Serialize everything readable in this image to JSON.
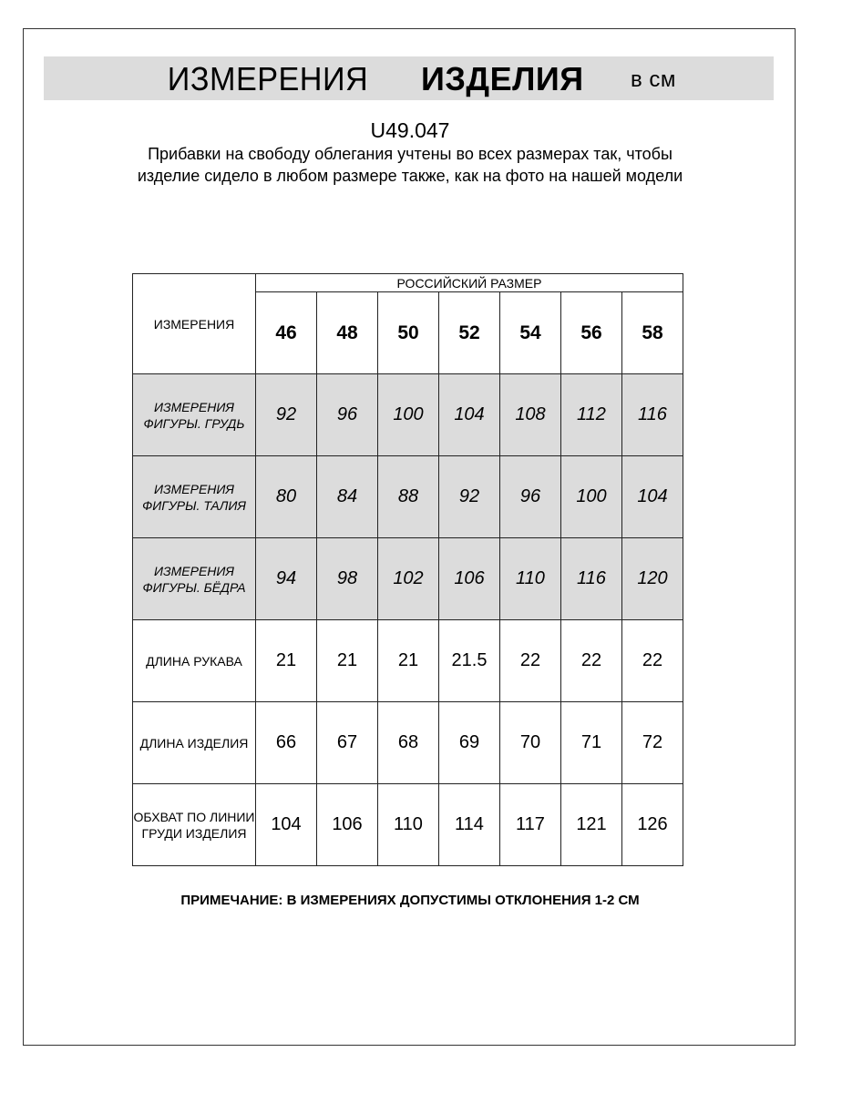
{
  "banner": {
    "title_regular": "ИЗМЕРЕНИЯ",
    "title_bold": "ИЗДЕЛИЯ",
    "unit": "в см"
  },
  "article_code": "U49.047",
  "description": "Прибавки на свободу облегания учтены во всех размерах так, чтобы изделие сидело в любом размере также, как на фото на нашей модели",
  "table": {
    "corner_label": "ИЗМЕРЕНИЯ",
    "group_header": "РОССИЙСКИЙ РАЗМЕР",
    "sizes": [
      "46",
      "48",
      "50",
      "52",
      "54",
      "56",
      "58"
    ],
    "rows": [
      {
        "label": "ИЗМЕРЕНИЯ ФИГУРЫ. ГРУДЬ",
        "values": [
          "92",
          "96",
          "100",
          "104",
          "108",
          "112",
          "116"
        ],
        "shaded": true
      },
      {
        "label": "ИЗМЕРЕНИЯ ФИГУРЫ. ТАЛИЯ",
        "values": [
          "80",
          "84",
          "88",
          "92",
          "96",
          "100",
          "104"
        ],
        "shaded": true
      },
      {
        "label": "ИЗМЕРЕНИЯ ФИГУРЫ. БЁДРА",
        "values": [
          "94",
          "98",
          "102",
          "106",
          "110",
          "116",
          "120"
        ],
        "shaded": true
      },
      {
        "label": "ДЛИНА РУКАВА",
        "values": [
          "21",
          "21",
          "21",
          "21.5",
          "22",
          "22",
          "22"
        ],
        "shaded": false
      },
      {
        "label": "ДЛИНА ИЗДЕЛИЯ",
        "values": [
          "66",
          "67",
          "68",
          "69",
          "70",
          "71",
          "72"
        ],
        "shaded": false
      },
      {
        "label": "ОБХВАТ ПО ЛИНИИ ГРУДИ ИЗДЕЛИЯ",
        "values": [
          "104",
          "106",
          "110",
          "114",
          "117",
          "121",
          "126"
        ],
        "shaded": false
      }
    ]
  },
  "note": "ПРИМЕЧАНИЕ: В ИЗМЕРЕНИЯХ ДОПУСТИМЫ ОТКЛОНЕНИЯ 1-2 СМ",
  "colors": {
    "shade": "#dcdcdc",
    "border": "#222222"
  }
}
